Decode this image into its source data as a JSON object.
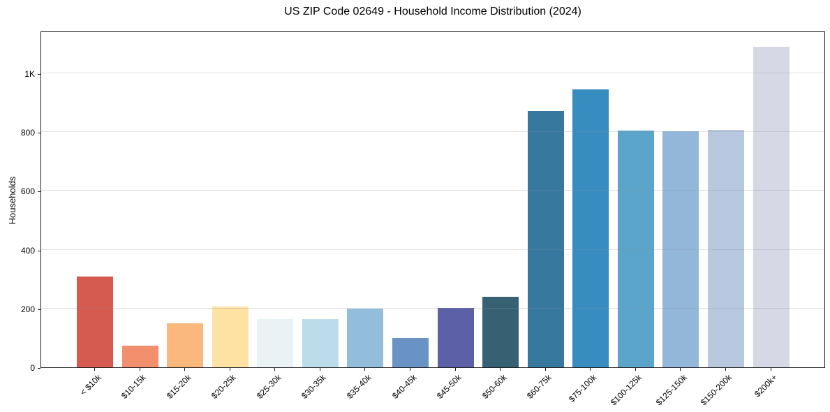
{
  "chart_data": {
    "type": "bar",
    "title": "US ZIP Code 02649 - Household Income Distribution (2024)",
    "xlabel": "",
    "ylabel": "Households",
    "categories": [
      "< $10k",
      "$10-15k",
      "$15-20k",
      "$20-25k",
      "$25-30k",
      "$30-35k",
      "$35-40k",
      "$40-45k",
      "$45-50k",
      "$50-60k",
      "$60-75k",
      "$75-100k",
      "$100-125k",
      "$125-150k",
      "$150-200k",
      "$200k+"
    ],
    "values": [
      310,
      74,
      150,
      206,
      164,
      164,
      200,
      100,
      203,
      240,
      873,
      946,
      806,
      803,
      808,
      1090
    ],
    "bar_colors": [
      "#d55b50",
      "#f28f6c",
      "#fbb87c",
      "#fde2a3",
      "#e9f3f6",
      "#bcdcec",
      "#92bedc",
      "#6a93c5",
      "#5c60a6",
      "#366173",
      "#37789e",
      "#378cc0",
      "#5aa5c9",
      "#92b7d9",
      "#b8c9df",
      "#d7d8e6"
    ],
    "ytick_labels": [
      "0",
      "200",
      "400",
      "600",
      "800",
      "1K"
    ],
    "ytick_values": [
      0,
      200,
      400,
      600,
      800,
      1000
    ],
    "ylim": [
      0,
      1145
    ],
    "grid": "horizontal-only",
    "legend": "none",
    "background_color": "#ffffff",
    "spine_color": "#1a1a1a"
  }
}
